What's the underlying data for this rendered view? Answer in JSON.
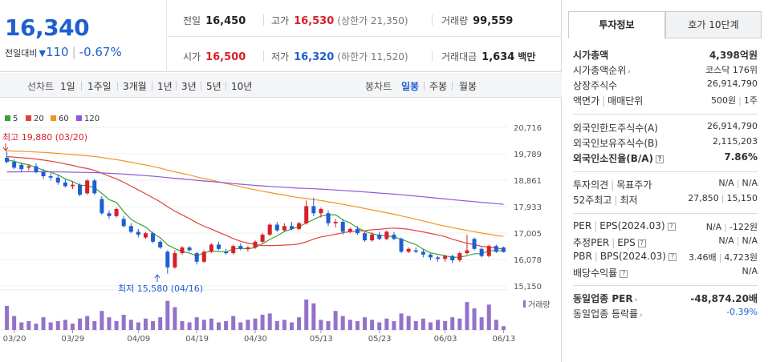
{
  "summary": {
    "price": "16,340",
    "change_label": "전일대비",
    "change_abs": "110",
    "change_pct": "-0.67%",
    "prev_close_label": "전일",
    "prev_close": "16,450",
    "high_label": "고가",
    "high": "16,530",
    "upper_limit": "(상한가 21,350)",
    "volume_label": "거래량",
    "volume": "99,559",
    "open_label": "시가",
    "open": "16,500",
    "low_label": "저가",
    "low": "16,320",
    "lower_limit": "(하한가 11,520)",
    "value_label": "거래대금",
    "value": "1,634",
    "value_unit": "백만"
  },
  "toolbar": {
    "line_chart_label": "선차트",
    "periods": [
      "1일",
      "1주일",
      "3개월",
      "1년",
      "3년",
      "5년",
      "10년"
    ],
    "candle_chart_label": "봉차트",
    "candle_periods": [
      "일봉",
      "주봉",
      "월봉"
    ],
    "active_candle": "일봉"
  },
  "legend": {
    "ma": [
      "5",
      "20",
      "60",
      "120"
    ],
    "volume_label": "거래량"
  },
  "annotations": {
    "high": "최고 19,880 (03/20)",
    "low": "최저 15,580 (04/16)"
  },
  "colors": {
    "up": "#d8202a",
    "down": "#1e5fd1",
    "ma5": "#3aa336",
    "ma20": "#e3403a",
    "ma60": "#f39423",
    "ma120": "#9058d6",
    "volume": "#9472c9"
  },
  "chart_data": {
    "type": "candlestick",
    "y_ticks": [
      "20,716",
      "19,789",
      "18,861",
      "17,933",
      "17,005",
      "16,078",
      "15,150"
    ],
    "ylim": [
      15150,
      20716
    ],
    "x_ticks": [
      "03/20",
      "03/29",
      "04/09",
      "04/19",
      "04/30",
      "05/13",
      "05/23",
      "06/03",
      "06/13"
    ],
    "candles": [
      {
        "o": 19650,
        "h": 19880,
        "l": 19450,
        "c": 19500
      },
      {
        "o": 19500,
        "h": 19600,
        "l": 19250,
        "c": 19300
      },
      {
        "o": 19400,
        "h": 19480,
        "l": 19150,
        "c": 19250
      },
      {
        "o": 19300,
        "h": 19420,
        "l": 19200,
        "c": 19350
      },
      {
        "o": 19350,
        "h": 19450,
        "l": 19100,
        "c": 19150
      },
      {
        "o": 19150,
        "h": 19250,
        "l": 18900,
        "c": 19000
      },
      {
        "o": 19000,
        "h": 19100,
        "l": 18850,
        "c": 18950
      },
      {
        "o": 18950,
        "h": 19050,
        "l": 18700,
        "c": 18780
      },
      {
        "o": 18780,
        "h": 18900,
        "l": 18600,
        "c": 18650
      },
      {
        "o": 18650,
        "h": 18800,
        "l": 18550,
        "c": 18700
      },
      {
        "o": 18700,
        "h": 18750,
        "l": 18300,
        "c": 18350
      },
      {
        "o": 18400,
        "h": 18900,
        "l": 18350,
        "c": 18850
      },
      {
        "o": 18850,
        "h": 18900,
        "l": 18350,
        "c": 18400
      },
      {
        "o": 18200,
        "h": 18300,
        "l": 17650,
        "c": 17700
      },
      {
        "o": 17700,
        "h": 17800,
        "l": 17500,
        "c": 17600
      },
      {
        "o": 17600,
        "h": 17900,
        "l": 17550,
        "c": 17850
      },
      {
        "o": 17500,
        "h": 17600,
        "l": 17200,
        "c": 17250
      },
      {
        "o": 17250,
        "h": 17350,
        "l": 17000,
        "c": 17050
      },
      {
        "o": 17050,
        "h": 17150,
        "l": 16850,
        "c": 16950
      },
      {
        "o": 16850,
        "h": 17050,
        "l": 16800,
        "c": 17000
      },
      {
        "o": 17000,
        "h": 17050,
        "l": 16650,
        "c": 16700
      },
      {
        "o": 16700,
        "h": 16750,
        "l": 16450,
        "c": 16500
      },
      {
        "o": 16350,
        "h": 16400,
        "l": 15580,
        "c": 15800
      },
      {
        "o": 15800,
        "h": 16400,
        "l": 15750,
        "c": 16300
      },
      {
        "o": 16300,
        "h": 16550,
        "l": 16250,
        "c": 16500
      },
      {
        "o": 16500,
        "h": 16550,
        "l": 16350,
        "c": 16400
      },
      {
        "o": 16300,
        "h": 16350,
        "l": 15900,
        "c": 16000
      },
      {
        "o": 16000,
        "h": 16400,
        "l": 15950,
        "c": 16350
      },
      {
        "o": 16350,
        "h": 16650,
        "l": 16300,
        "c": 16600
      },
      {
        "o": 16600,
        "h": 16700,
        "l": 16400,
        "c": 16450
      },
      {
        "o": 16350,
        "h": 16450,
        "l": 16250,
        "c": 16300
      },
      {
        "o": 16300,
        "h": 16600,
        "l": 16250,
        "c": 16550
      },
      {
        "o": 16550,
        "h": 16650,
        "l": 16400,
        "c": 16450
      },
      {
        "o": 16450,
        "h": 16550,
        "l": 16350,
        "c": 16500
      },
      {
        "o": 16500,
        "h": 16750,
        "l": 16450,
        "c": 16700
      },
      {
        "o": 16700,
        "h": 17000,
        "l": 16650,
        "c": 16950
      },
      {
        "o": 16950,
        "h": 17350,
        "l": 16900,
        "c": 17300
      },
      {
        "o": 17300,
        "h": 17400,
        "l": 17050,
        "c": 17100
      },
      {
        "o": 17100,
        "h": 17350,
        "l": 17050,
        "c": 17250
      },
      {
        "o": 17250,
        "h": 17400,
        "l": 17100,
        "c": 17150
      },
      {
        "o": 17150,
        "h": 17400,
        "l": 17100,
        "c": 17350
      },
      {
        "o": 17350,
        "h": 18150,
        "l": 17300,
        "c": 17950
      },
      {
        "o": 17950,
        "h": 18250,
        "l": 17600,
        "c": 17700
      },
      {
        "o": 17700,
        "h": 17900,
        "l": 17550,
        "c": 17850
      },
      {
        "o": 17700,
        "h": 17800,
        "l": 17250,
        "c": 17350
      },
      {
        "o": 17350,
        "h": 17500,
        "l": 17200,
        "c": 17400
      },
      {
        "o": 17400,
        "h": 17500,
        "l": 16950,
        "c": 17050
      },
      {
        "o": 17050,
        "h": 17200,
        "l": 17000,
        "c": 17150
      },
      {
        "o": 17150,
        "h": 17250,
        "l": 16950,
        "c": 17000
      },
      {
        "o": 17000,
        "h": 17050,
        "l": 16700,
        "c": 16750
      },
      {
        "o": 16750,
        "h": 17050,
        "l": 16700,
        "c": 16950
      },
      {
        "o": 16950,
        "h": 17050,
        "l": 16750,
        "c": 16800
      },
      {
        "o": 16800,
        "h": 17100,
        "l": 16750,
        "c": 17050
      },
      {
        "o": 16950,
        "h": 17050,
        "l": 16750,
        "c": 16800
      },
      {
        "o": 16800,
        "h": 16850,
        "l": 16300,
        "c": 16350
      },
      {
        "o": 16350,
        "h": 16500,
        "l": 16300,
        "c": 16450
      },
      {
        "o": 16400,
        "h": 16500,
        "l": 16300,
        "c": 16350
      },
      {
        "o": 16350,
        "h": 16450,
        "l": 16150,
        "c": 16250
      },
      {
        "o": 16250,
        "h": 16300,
        "l": 16050,
        "c": 16150
      },
      {
        "o": 16150,
        "h": 16200,
        "l": 16000,
        "c": 16100
      },
      {
        "o": 16100,
        "h": 16250,
        "l": 16000,
        "c": 16200
      },
      {
        "o": 16200,
        "h": 16250,
        "l": 15950,
        "c": 16050
      },
      {
        "o": 16050,
        "h": 16350,
        "l": 16000,
        "c": 16300
      },
      {
        "o": 16300,
        "h": 16950,
        "l": 16250,
        "c": 16400
      },
      {
        "o": 16800,
        "h": 16850,
        "l": 16400,
        "c": 16450
      },
      {
        "o": 16450,
        "h": 16500,
        "l": 16150,
        "c": 16200
      },
      {
        "o": 16200,
        "h": 16600,
        "l": 16150,
        "c": 16550
      },
      {
        "o": 16550,
        "h": 16600,
        "l": 16300,
        "c": 16350
      },
      {
        "o": 16500,
        "h": 16530,
        "l": 16320,
        "c": 16340
      }
    ],
    "volumes": [
      38,
      22,
      12,
      14,
      10,
      20,
      12,
      14,
      16,
      10,
      18,
      22,
      14,
      30,
      20,
      14,
      24,
      16,
      12,
      18,
      14,
      20,
      46,
      36,
      14,
      12,
      20,
      16,
      18,
      12,
      14,
      22,
      12,
      16,
      18,
      24,
      26,
      14,
      16,
      12,
      20,
      48,
      42,
      16,
      14,
      30,
      22,
      16,
      14,
      20,
      16,
      12,
      18,
      14,
      26,
      22,
      14,
      18,
      12,
      16,
      14,
      20,
      18,
      44,
      34,
      20,
      40,
      16,
      6
    ]
  },
  "info": {
    "tab_active": "투자정보",
    "tab_inactive": "호가 10단계",
    "market_cap_label": "시가총액",
    "market_cap": "4,398억원",
    "market_cap_rank_label": "시가총액순위",
    "market_cap_rank": "코스닥 176위",
    "shares_label": "상장주식수",
    "shares": "26,914,790",
    "par_label": "액면가",
    "unit_label": "매매단위",
    "par": "500원",
    "unit": "1주",
    "foreign_limit_label": "외국인한도주식수(A)",
    "foreign_limit": "26,914,790",
    "foreign_hold_label": "외국인보유주식수(B)",
    "foreign_hold": "2,115,203",
    "foreign_ratio_label": "외국인소진율(B/A)",
    "foreign_ratio": "7.86%",
    "opinion_label": "투자의견",
    "target_label": "목표주가",
    "opinion": "N/A",
    "target": "N/A",
    "w52_high_label": "52주최고",
    "w52_low_label": "최저",
    "w52_high": "27,850",
    "w52_low": "15,150",
    "per_label": "PER",
    "eps_label": "EPS(2024.03)",
    "per": "N/A",
    "eps": "-122원",
    "est_per_label": "추정PER",
    "est_eps_label": "EPS",
    "est_per": "N/A",
    "est_eps": "N/A",
    "pbr_label": "PBR",
    "bps_label": "BPS(2024.03)",
    "pbr": "3.46배",
    "bps": "4,723원",
    "div_label": "배당수익률",
    "div": "N/A",
    "sector_per_label": "동일업종 PER",
    "sector_per": "-48,874.20배",
    "sector_chg_label": "동일업종 등락률",
    "sector_chg": "-0.39%"
  }
}
